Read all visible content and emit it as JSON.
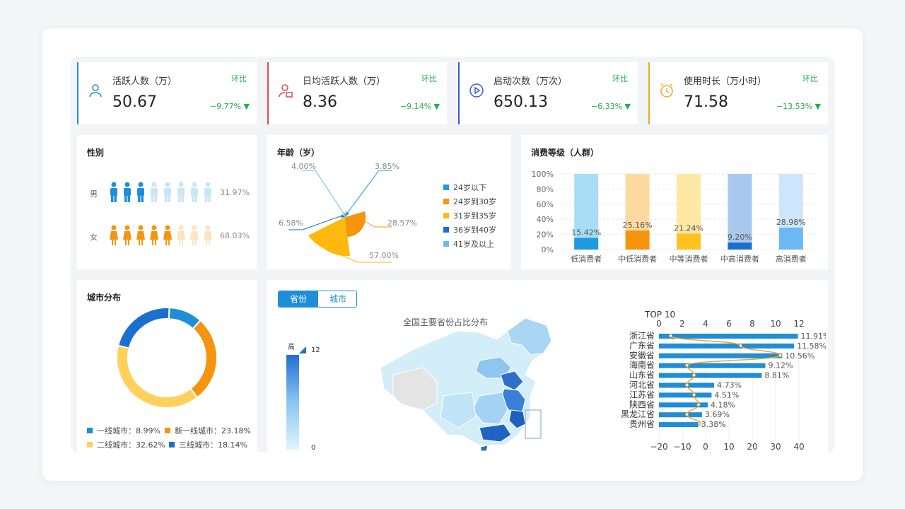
{
  "kpis": [
    {
      "title": "活跃人数（万）",
      "value": "50.67",
      "compare_label": "环比",
      "change": "−9.77%",
      "color": "#1f8ed8",
      "icon": "user-icon"
    },
    {
      "title": "日均活跃人数（万）",
      "value": "8.36",
      "compare_label": "环比",
      "change": "−9.14%",
      "color": "#d94a55",
      "icon": "user-clock-icon"
    },
    {
      "title": "启动次数（万次）",
      "value": "650.13",
      "compare_label": "环比",
      "change": "−6.33%",
      "color": "#3a5bd9",
      "icon": "play-icon"
    },
    {
      "title": "使用时长（万小时）",
      "value": "71.58",
      "compare_label": "环比",
      "change": "−13.53%",
      "color": "#f5a623",
      "icon": "alarm-clock-icon"
    }
  ],
  "gender": {
    "title": "性别",
    "male": {
      "label": "男",
      "pct": "31.97%",
      "fraction": 0.3197
    },
    "female": {
      "label": "女",
      "pct": "68.03%",
      "fraction": 0.6803
    }
  },
  "age": {
    "title": "年龄（岁）",
    "legend": [
      "24岁以下",
      "24岁到30岁",
      "31岁到35岁",
      "36岁到40岁",
      "41岁及以上"
    ],
    "labels": [
      "3.85%",
      "28.57%",
      "57.00%",
      "6.58%",
      "4.00%"
    ]
  },
  "consumption": {
    "title": "消费等级（人群）",
    "yticks": [
      "100%",
      "80%",
      "60%",
      "40%",
      "20%",
      "0%"
    ]
  },
  "city": {
    "title": "城市分布",
    "legend": [
      {
        "label": "一线城市：8.99%",
        "color": "#1f8ed8"
      },
      {
        "label": "新一线城市：23.18%",
        "color": "#f5950f"
      },
      {
        "label": "二线城市：32.62%",
        "color": "#ffd15c"
      },
      {
        "label": "三线城市：18.14%",
        "color": "#1a6fd1"
      }
    ]
  },
  "map": {
    "tabs": [
      "省份",
      "城市"
    ],
    "title": "全国主要省份占比分布",
    "scale_high": "高",
    "scale_max": "12",
    "scale_min": "0"
  },
  "top10": {
    "title": "TOP 10"
  },
  "chart_data": [
    {
      "type": "bar",
      "title": "消费等级（人群）",
      "categories": [
        "低消费者",
        "中低消费者",
        "中等消费者",
        "中高消费者",
        "高消费者"
      ],
      "values": [
        15.42,
        25.16,
        21.24,
        9.2,
        28.98
      ],
      "value_labels": [
        "15.42%",
        "25.16%",
        "21.24%",
        "9.20%",
        "28.98%"
      ],
      "ylim": [
        0,
        100
      ],
      "colors": [
        "#1f9ae0",
        "#f5950f",
        "#ffc21f",
        "#1a6fd1",
        "#6bb8f5"
      ],
      "bg_colors": [
        "#a9dcf5",
        "#fdd9a0",
        "#ffe8a6",
        "#a8c8ee",
        "#cde6fb"
      ],
      "grid": true
    },
    {
      "type": "pie",
      "title": "年龄（岁）",
      "categories": [
        "24岁以下",
        "24岁到30岁",
        "31岁到35岁",
        "36岁到40岁",
        "41岁及以上"
      ],
      "values": [
        3.85,
        28.57,
        57.0,
        6.58,
        4.0
      ],
      "colors": [
        "#1f9ae0",
        "#f5950f",
        "#ffb80d",
        "#1a6fd1",
        "#6bb8f5"
      ]
    },
    {
      "type": "pie",
      "title": "城市分布",
      "categories": [
        "一线城市",
        "新一线城市",
        "二线城市",
        "三线城市"
      ],
      "values": [
        8.99,
        23.18,
        32.62,
        18.14
      ],
      "colors": [
        "#1f8ed8",
        "#f5950f",
        "#ffd15c",
        "#1a6fd1"
      ]
    },
    {
      "type": "bar",
      "title": "TOP 10",
      "categories": [
        "浙江省",
        "广东省",
        "安徽省",
        "海南省",
        "山东省",
        "河北省",
        "江苏省",
        "陕西省",
        "黑龙江省",
        "贵州省"
      ],
      "values": [
        11.91,
        11.58,
        10.56,
        9.12,
        8.81,
        4.73,
        4.51,
        4.18,
        3.69,
        3.38
      ],
      "value_labels": [
        "11.91%",
        "11.58%",
        "10.56%",
        "9.12%",
        "8.81%",
        "4.73%",
        "4.51%",
        "4.18%",
        "3.69%",
        "3.38%"
      ],
      "top_axis_ticks": [
        "0",
        "2",
        "4",
        "6",
        "8",
        "10",
        "12"
      ],
      "bottom_axis_ticks": [
        "−20",
        "−10",
        "0",
        "10",
        "20",
        "30",
        "40"
      ],
      "line_values": [
        -15,
        15,
        32,
        -8,
        -5,
        -8,
        -5,
        -3,
        -8,
        -2
      ],
      "bar_color": "#1f8ed8",
      "line_color": "#f5a623"
    }
  ]
}
